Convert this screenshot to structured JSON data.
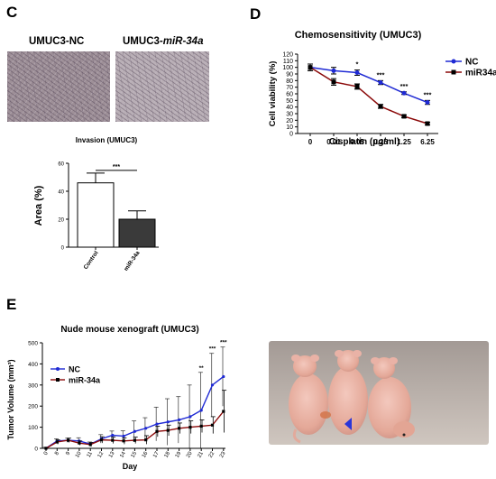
{
  "panels": {
    "C": "C",
    "D": "D",
    "E": "E"
  },
  "images": {
    "nc_label": "UMUC3-NC",
    "mir_label_prefix": "UMUC3-",
    "mir_label_italic": "miR-34a"
  },
  "colors": {
    "blue": "#1f2ad4",
    "darkred": "#8b0a0a",
    "dark": "#000000",
    "bar_white": "#ffffff",
    "bar_dark": "#3a3a3a"
  },
  "chart_data": [
    {
      "id": "invasion",
      "type": "bar",
      "title": "Invasion (UMUC3)",
      "xlabel": "",
      "ylabel": "Area  (%)",
      "ylim": [
        0,
        60
      ],
      "yticks": [
        0,
        20,
        40,
        60
      ],
      "categories": [
        "Control",
        "miR-34a"
      ],
      "values": [
        46,
        20
      ],
      "errors": [
        7,
        6
      ],
      "significance": "***"
    },
    {
      "id": "chemosensitivity",
      "type": "line",
      "title": "Chemosensitivity (UMUC3)",
      "xlabel": "Cisplatin (μg/ml)",
      "ylabel": "Cell viability (%)",
      "ylim": [
        0,
        120
      ],
      "yticks": [
        0,
        10,
        20,
        30,
        40,
        50,
        60,
        70,
        80,
        90,
        100,
        110,
        120
      ],
      "x": [
        "0",
        "0.01",
        "0.05",
        "0.25",
        "1.25",
        "6.25"
      ],
      "series": [
        {
          "name": "NC",
          "values": [
            100,
            95,
            92,
            77,
            61,
            47
          ],
          "errors": [
            5,
            5,
            4,
            3,
            2,
            3
          ]
        },
        {
          "name": "miR34a",
          "values": [
            100,
            78,
            71,
            41,
            26,
            15
          ],
          "errors": [
            5,
            5,
            4,
            3,
            2,
            2
          ]
        }
      ],
      "significance": [
        "",
        "",
        "*",
        "***",
        "***",
        "***"
      ]
    },
    {
      "id": "xenograft",
      "type": "line",
      "title": "Nude mouse xenograft (UMUC3)",
      "xlabel": "Day",
      "ylabel": "Tumor Volume (mm³)",
      "ylim": [
        0,
        500
      ],
      "yticks": [
        0,
        100,
        200,
        300,
        400,
        500
      ],
      "x": [
        "0",
        "8",
        "9",
        "10",
        "11",
        "12",
        "13",
        "14",
        "15",
        "16",
        "17",
        "18",
        "19",
        "20",
        "21",
        "22",
        "23"
      ],
      "series": [
        {
          "name": "NC",
          "values": [
            0,
            35,
            38,
            35,
            20,
            45,
            62,
            58,
            80,
            95,
            115,
            125,
            135,
            150,
            180,
            300,
            340
          ],
          "errors": [
            5,
            10,
            10,
            15,
            10,
            20,
            20,
            25,
            50,
            50,
            80,
            110,
            110,
            150,
            180,
            150,
            140
          ]
        },
        {
          "name": "miR-34a",
          "values": [
            0,
            30,
            38,
            25,
            18,
            40,
            38,
            35,
            38,
            40,
            80,
            85,
            95,
            100,
            105,
            110,
            175
          ],
          "errors": [
            5,
            10,
            10,
            10,
            10,
            15,
            15,
            15,
            15,
            20,
            25,
            25,
            25,
            30,
            30,
            40,
            100
          ]
        }
      ],
      "significance": [
        "",
        "",
        "",
        "",
        "",
        "",
        "",
        "",
        "",
        "",
        "",
        "",
        "",
        "",
        "**",
        "***",
        "***"
      ]
    }
  ]
}
